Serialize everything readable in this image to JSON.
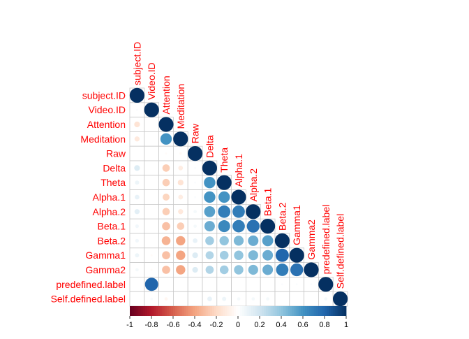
{
  "chart_data": {
    "type": "heatmap",
    "variables": [
      "subject.ID",
      "Video.ID",
      "Attention",
      "Meditation",
      "Raw",
      "Delta",
      "Theta",
      "Alpha.1",
      "Alpha.2",
      "Beta.1",
      "Beta.2",
      "Gamma1",
      "Gamma2",
      "predefined.label",
      "Self.defined.label"
    ],
    "correlations": [
      [
        1
      ],
      [
        0.02,
        1
      ],
      [
        -0.15,
        0.0,
        1
      ],
      [
        -0.12,
        0.0,
        0.6,
        1
      ],
      [
        0.0,
        0.0,
        -0.02,
        -0.03,
        1
      ],
      [
        0.15,
        0.0,
        -0.25,
        -0.1,
        0.02,
        1
      ],
      [
        0.08,
        0.0,
        -0.25,
        -0.15,
        0.02,
        0.6,
        1
      ],
      [
        0.1,
        0.0,
        -0.22,
        -0.1,
        0.02,
        0.6,
        0.6,
        1
      ],
      [
        0.12,
        0.0,
        -0.25,
        -0.12,
        0.05,
        0.55,
        0.7,
        0.7,
        1
      ],
      [
        0.06,
        0.0,
        -0.3,
        -0.25,
        0.05,
        0.5,
        0.65,
        0.7,
        0.75,
        1
      ],
      [
        0.06,
        0.0,
        -0.35,
        -0.4,
        0.1,
        0.35,
        0.4,
        0.45,
        0.5,
        0.55,
        1
      ],
      [
        0.08,
        -0.02,
        -0.3,
        -0.4,
        0.15,
        0.3,
        0.35,
        0.4,
        0.45,
        0.5,
        0.8,
        1
      ],
      [
        0.05,
        -0.02,
        -0.3,
        -0.4,
        0.15,
        0.3,
        0.35,
        0.4,
        0.45,
        0.5,
        0.7,
        0.75,
        1
      ],
      [
        0.0,
        0.8,
        0.0,
        0.0,
        0.0,
        0.0,
        0.0,
        0.0,
        0.0,
        0.0,
        0.02,
        0.02,
        0.02,
        1
      ],
      [
        0.0,
        0.03,
        -0.05,
        0.0,
        0.0,
        0.1,
        0.08,
        0.05,
        0.05,
        0.05,
        0.0,
        0.0,
        0.0,
        0.05,
        1
      ]
    ],
    "colorbar": {
      "ticks": [
        "-1",
        "-0.8",
        "-0.6",
        "-0.4",
        "-0.2",
        "0",
        "0.2",
        "0.4",
        "0.6",
        "0.8",
        "1"
      ],
      "range": [
        -1,
        1
      ]
    },
    "colors": {
      "negative": "#67001F",
      "neutral": "#FFFFFF",
      "positive": "#053061",
      "label": "#FF0000",
      "grid": "#C8C8C8"
    }
  }
}
